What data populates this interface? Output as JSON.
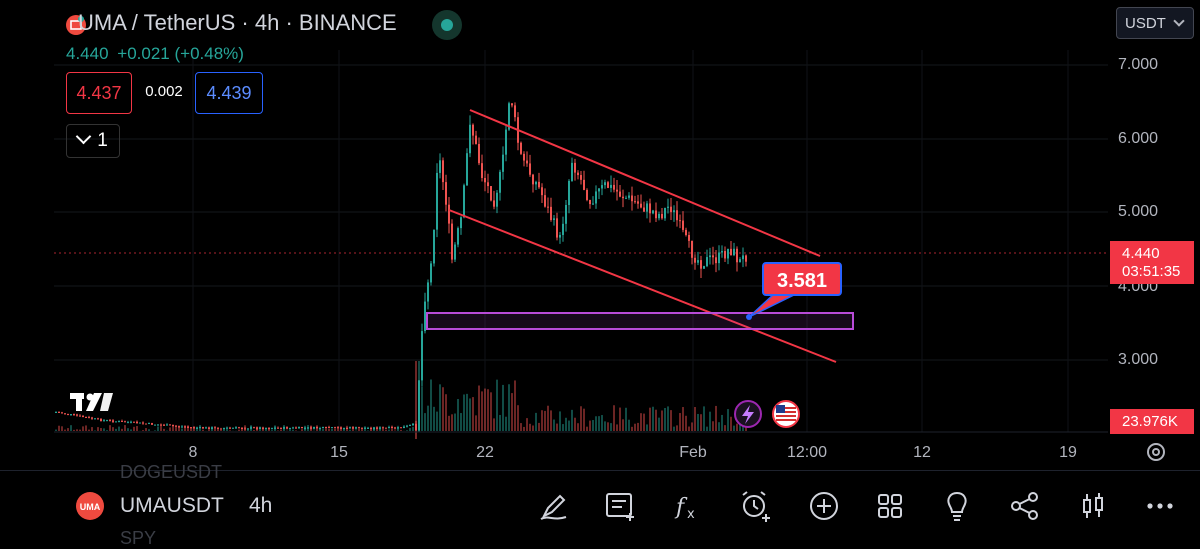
{
  "header": {
    "symbol_title": "UMA / TetherUS · 4h · BINANCE",
    "last_price": "4.440",
    "change": "+0.021 (+0.48%)",
    "bid": "4.437",
    "spread": "0.002",
    "ask": "4.439",
    "indicator_collapse_count": "1",
    "currency": "USDT"
  },
  "price_axis": {
    "ticks": [
      "7.000",
      "6.000",
      "5.000",
      "4.000",
      "3.000"
    ],
    "current_price": "4.440",
    "countdown": "03:51:35",
    "volume_value": "23.976K"
  },
  "time_axis": {
    "ticks": [
      "8",
      "15",
      "22",
      "Feb",
      "12:00",
      "12",
      "19"
    ]
  },
  "annotation": {
    "callout_value": "3.581"
  },
  "bottom_bar": {
    "ghost_above": "DOGEUSDT",
    "symbol": "UMAUSDT",
    "interval": "4h",
    "ghost_below": "SPY"
  },
  "colors": {
    "up": "#26a69a",
    "down": "#ef5350",
    "accent_red": "#f23645",
    "accent_blue": "#2962ff",
    "zone": "#b84bd8"
  },
  "icons": [
    "draw-icon",
    "notes-icon",
    "indicators-icon",
    "alert-add-icon",
    "add-icon",
    "layouts-icon",
    "ideas-icon",
    "share-icon",
    "chart-type-icon",
    "more-icon"
  ]
}
